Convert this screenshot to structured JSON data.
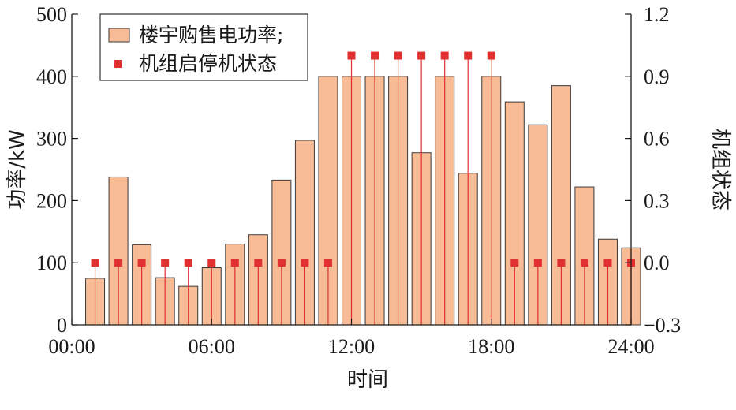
{
  "chart_data": {
    "type": "bar",
    "x": [
      1,
      2,
      3,
      4,
      5,
      6,
      7,
      8,
      9,
      10,
      11,
      12,
      13,
      14,
      15,
      16,
      17,
      18,
      19,
      20,
      21,
      22,
      23,
      24
    ],
    "series": [
      {
        "name": "楼宇购售电功率;",
        "type": "bar",
        "axis": "left",
        "color": "#f7bb96",
        "values": [
          75,
          238,
          129,
          76,
          62,
          92,
          130,
          145,
          233,
          297,
          400,
          400,
          400,
          400,
          277,
          400,
          244,
          400,
          359,
          322,
          385,
          222,
          138,
          124
        ]
      },
      {
        "name": "机组启停机状态",
        "type": "stem",
        "axis": "right",
        "color": "#e03030",
        "values": [
          0,
          0,
          0,
          0,
          0,
          0,
          0,
          0,
          0,
          0,
          0,
          1,
          1,
          1,
          1,
          1,
          1,
          1,
          0,
          0,
          0,
          0,
          0,
          0
        ]
      }
    ],
    "xlabel": "时间",
    "ylabel": "功率/kW",
    "y2label": "机组状态",
    "xlim": [
      0,
      24
    ],
    "ylim": [
      0,
      500
    ],
    "y2lim": [
      -0.3,
      1.2
    ],
    "xticks": [
      0,
      6,
      12,
      18,
      24
    ],
    "xtick_labels": [
      "00:00",
      "06:00",
      "12:00",
      "18:00",
      "24:00"
    ],
    "yticks": [
      0,
      100,
      200,
      300,
      400,
      500
    ],
    "yticks_labels": [
      "0",
      "100",
      "200",
      "300",
      "400",
      "500"
    ],
    "y2ticks": [
      -0.3,
      0,
      0.3,
      0.6,
      0.9,
      1.2
    ],
    "y2tick_labels": [
      "−0.3",
      "0.0",
      "0.3",
      "0.6",
      "0.9",
      "1.2"
    ],
    "grid": false,
    "legend_position": "top-left"
  },
  "colors": {
    "bar_fill": "#f7bb96",
    "bar_stroke": "#3a3a3a",
    "stem": "#e03030",
    "axis": "#1a1a1a"
  }
}
